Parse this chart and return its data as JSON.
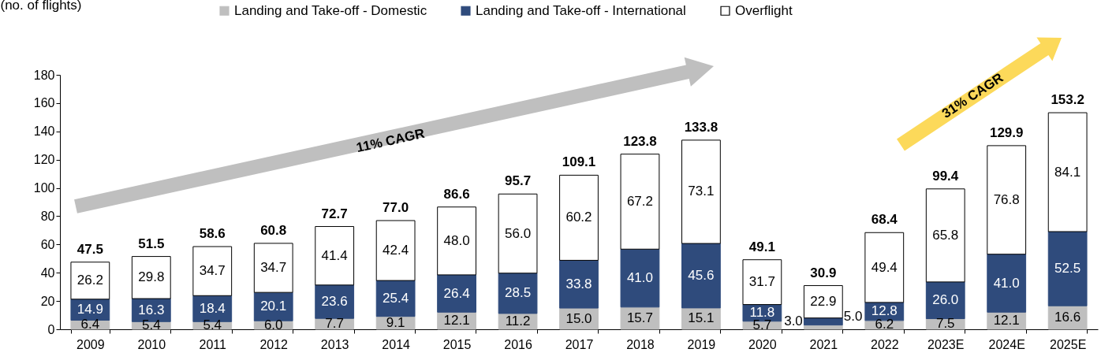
{
  "chart_data": {
    "type": "bar",
    "stacked": true,
    "ylabel": "(no. of flights)",
    "categories": [
      "2009",
      "2010",
      "2011",
      "2012",
      "2013",
      "2014",
      "2015",
      "2016",
      "2017",
      "2018",
      "2019",
      "2020",
      "2021",
      "2022",
      "2023E",
      "2024E",
      "2025E"
    ],
    "series": [
      {
        "name": "Landing and Take-off - Domestic",
        "color": "#bfbfbf",
        "values": [
          6.4,
          5.4,
          5.4,
          6.0,
          7.7,
          9.1,
          12.1,
          11.2,
          15.0,
          15.7,
          15.1,
          5.7,
          3.0,
          6.2,
          7.5,
          12.1,
          16.6
        ],
        "value_labels": [
          "6.4",
          "5.4",
          "5.4",
          "6.0",
          "7.7",
          "9.1",
          "12.1",
          "11.2",
          "15.0",
          "15.7",
          "15.1",
          "5.7",
          "3.0",
          "6.2",
          "7.5",
          "12.1",
          "16.6"
        ]
      },
      {
        "name": "Landing and Take-off - International",
        "color": "#2f4b7c",
        "values": [
          14.9,
          16.3,
          18.4,
          20.1,
          23.6,
          25.4,
          26.4,
          28.5,
          33.8,
          41.0,
          45.6,
          11.8,
          5.0,
          12.8,
          26.0,
          41.0,
          52.5
        ],
        "value_labels": [
          "14.9",
          "16.3",
          "18.4",
          "20.1",
          "23.6",
          "25.4",
          "26.4",
          "28.5",
          "33.8",
          "41.0",
          "45.6",
          "11.8",
          "5.0",
          "12.8",
          "26.0",
          "41.0",
          "52.5"
        ]
      },
      {
        "name": "Overflight",
        "color": "#ffffff",
        "values": [
          26.2,
          29.8,
          34.7,
          34.7,
          41.4,
          42.4,
          48.0,
          56.0,
          60.2,
          67.2,
          73.1,
          31.7,
          22.9,
          49.4,
          65.8,
          76.8,
          84.1
        ],
        "value_labels": [
          "26.2",
          "29.8",
          "34.7",
          "34.7",
          "41.4",
          "42.4",
          "48.0",
          "56.0",
          "60.2",
          "67.2",
          "73.1",
          "31.7",
          "22.9",
          "49.4",
          "65.8",
          "76.8",
          "84.1"
        ]
      }
    ],
    "totals": [
      "47.5",
      "51.5",
      "58.6",
      "60.8",
      "72.7",
      "77.0",
      "86.6",
      "95.7",
      "109.1",
      "123.8",
      "133.8",
      "49.1",
      "30.9",
      "68.4",
      "99.4",
      "129.9",
      "153.2"
    ],
    "ylim": [
      0,
      180
    ],
    "yticks": [
      0,
      20,
      40,
      60,
      80,
      100,
      120,
      140,
      160,
      180
    ],
    "grid": false,
    "legend": "top",
    "annotations": [
      "11% CAGR",
      "31% CAGR"
    ]
  }
}
